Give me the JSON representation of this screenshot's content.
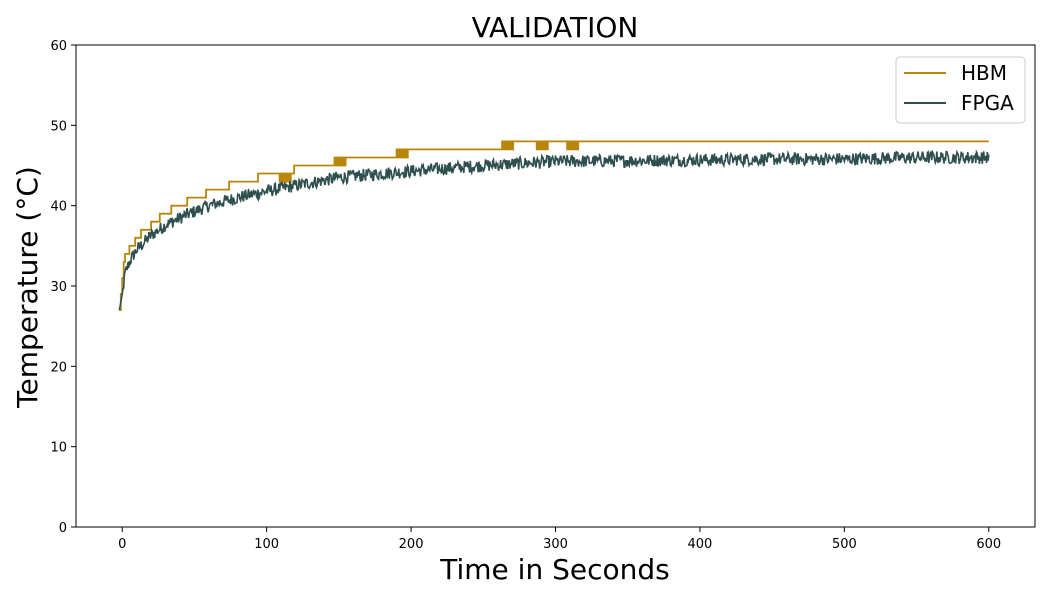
{
  "chart_data": {
    "type": "line",
    "title": "VALIDATION",
    "xlabel": "Time in Seconds",
    "ylabel": "Temperature (°C)",
    "xlim": [
      -32,
      632
    ],
    "ylim": [
      0,
      60
    ],
    "xticks": [
      0,
      100,
      200,
      300,
      400,
      500,
      600
    ],
    "yticks": [
      0,
      10,
      20,
      30,
      40,
      50,
      60
    ],
    "grid": false,
    "legend_position": "top-right",
    "series": [
      {
        "name": "HBM",
        "color": "#b8860b",
        "steps": [
          [
            -2,
            27
          ],
          [
            -1,
            29
          ],
          [
            0,
            31
          ],
          [
            1,
            33
          ],
          [
            2,
            34
          ],
          [
            5,
            35
          ],
          [
            9,
            36
          ],
          [
            13,
            37
          ],
          [
            20,
            38
          ],
          [
            26,
            39
          ],
          [
            34,
            40
          ],
          [
            45,
            41
          ],
          [
            58,
            42
          ],
          [
            74,
            43
          ],
          [
            94,
            44
          ],
          [
            119,
            45
          ],
          [
            149,
            46
          ],
          [
            196,
            47
          ],
          [
            268,
            48
          ],
          [
            600,
            48
          ]
        ],
        "flicker": [
          [
            109,
            43,
            44
          ],
          [
            147,
            45,
            46
          ],
          [
            190,
            46,
            47
          ],
          [
            263,
            47,
            48
          ],
          [
            287,
            47,
            48
          ],
          [
            308,
            47,
            48
          ]
        ]
      },
      {
        "name": "FPGA",
        "color": "#2f4f4f",
        "x": [
          -2,
          0,
          2,
          5,
          10,
          20,
          30,
          45,
          60,
          80,
          100,
          120,
          150,
          180,
          200,
          250,
          300,
          350,
          400,
          450,
          500,
          550,
          600
        ],
        "y": [
          27,
          29,
          31.5,
          33,
          34.5,
          36.3,
          37.6,
          38.9,
          40,
          41,
          41.8,
          42.5,
          43.5,
          44,
          44.3,
          45,
          45.5,
          45.6,
          45.7,
          45.8,
          45.8,
          46,
          46
        ],
        "noise_amplitude": 0.8
      }
    ]
  }
}
